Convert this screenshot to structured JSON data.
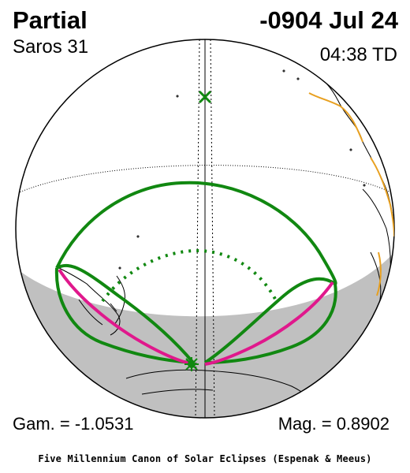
{
  "header": {
    "eclipse_type": "Partial",
    "date": "-0904 Jul 24",
    "saros": "Saros  31",
    "time": "04:38 TD"
  },
  "footer": {
    "gamma": "Gam. = -1.0531",
    "magnitude": "Mag. = 0.8902",
    "credit": "Five Millennium Canon of Solar Eclipses (Espenak & Meeus)"
  },
  "colors": {
    "globe_outline": "#000000",
    "night_shade": "#c0c0c0",
    "eclipse_limits": "#118811",
    "max_eclipse_line": "#e0188c",
    "coastline_highlight": "#e8a020",
    "greatest_eclipse_marker": "#118811"
  },
  "markers": {
    "greatest_eclipse": "x-cross-icon",
    "sub_solar_point": "star-burst-icon"
  }
}
